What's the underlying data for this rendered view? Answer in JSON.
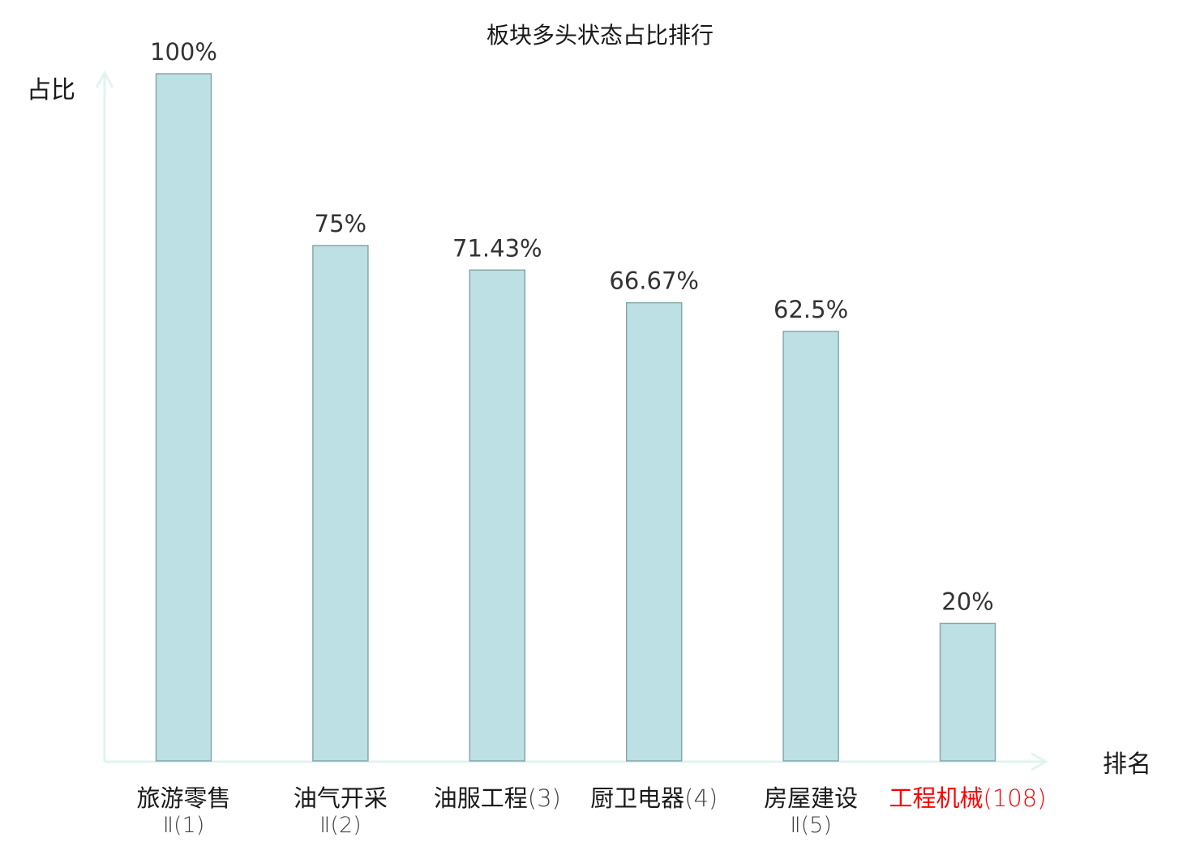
{
  "chart_data": {
    "type": "bar",
    "title": "板块多头状态占比排行",
    "ylabel": "占比",
    "xlabel": "排名",
    "ylim": [
      0,
      100
    ],
    "grid": false,
    "colors": {
      "bar_fill": "#bce0e3",
      "bar_stroke": "#86a7aa",
      "axis": "#e3f3f0",
      "text": "#333333",
      "title": "#1a1a1a",
      "highlight": "#ff0000"
    },
    "categories": [
      {
        "name": "旅游零售",
        "suffix": "Ⅱ(1)",
        "highlight": false
      },
      {
        "name": "油气开采",
        "suffix": "Ⅱ(2)",
        "highlight": false
      },
      {
        "name": "油服工程",
        "suffix": "(3)",
        "highlight": false
      },
      {
        "name": "厨卫电器",
        "suffix": "(4)",
        "highlight": false
      },
      {
        "name": "房屋建设",
        "suffix": "Ⅱ(5)",
        "highlight": false
      },
      {
        "name": "工程机械",
        "suffix": "(108)",
        "highlight": true
      }
    ],
    "values": [
      100,
      75,
      71.43,
      66.67,
      62.5,
      20
    ],
    "value_labels": [
      "100%",
      "75%",
      "71.43%",
      "66.67%",
      "62.5%",
      "20%"
    ]
  }
}
